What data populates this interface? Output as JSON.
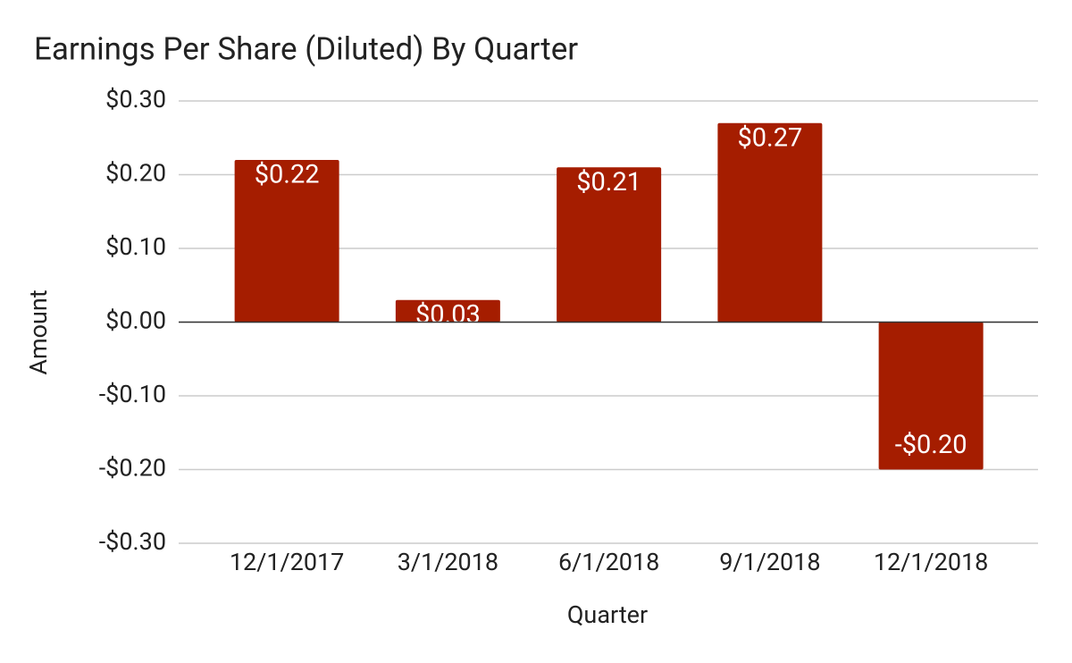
{
  "chart_data": {
    "type": "bar",
    "title": "Earnings Per Share (Diluted) By Quarter",
    "x_label": "Quarter",
    "y_label": "Amount",
    "categories": [
      "12/1/2017",
      "3/1/2018",
      "6/1/2018",
      "9/1/2018",
      "12/1/2018"
    ],
    "values": [
      0.22,
      0.03,
      0.21,
      0.27,
      -0.2
    ],
    "value_labels": [
      "$0.22",
      "$0.03",
      "$0.21",
      "$0.27",
      "-$0.20"
    ],
    "color": "#a51d00",
    "ylim": [
      -0.3,
      0.3
    ],
    "yticks": [
      {
        "value": -0.3,
        "label": "-$0.30"
      },
      {
        "value": -0.2,
        "label": "-$0.20"
      },
      {
        "value": -0.1,
        "label": "-$0.10"
      },
      {
        "value": 0,
        "label": "$0.00"
      },
      {
        "value": 0.1,
        "label": "$0.10"
      },
      {
        "value": 0.2,
        "label": "$0.20"
      },
      {
        "value": 0.3,
        "label": "$0.30"
      }
    ],
    "grid": true
  }
}
